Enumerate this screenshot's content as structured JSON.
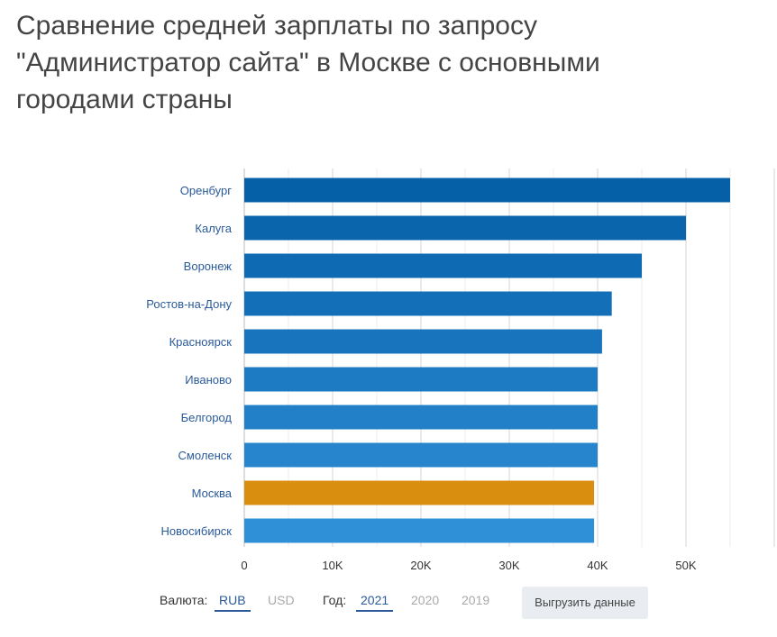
{
  "chart_data": {
    "type": "bar",
    "orientation": "horizontal",
    "title": "Сравнение средней зарплаты по запросу \"Администратор сайта\" в Москве с основными городами страны",
    "categories": [
      "Оренбург",
      "Калуга",
      "Воронеж",
      "Ростов-на-Дону",
      "Красноярск",
      "Иваново",
      "Белгород",
      "Смоленск",
      "Москва",
      "Новосибирск"
    ],
    "values": [
      55000,
      50000,
      45000,
      41600,
      40500,
      40000,
      40000,
      40000,
      39600,
      39600
    ],
    "highlight": "Москва",
    "xlim": [
      0,
      60000
    ],
    "xticks": [
      "0",
      "10K",
      "20K",
      "30K",
      "40K",
      "50K"
    ],
    "grid": true,
    "colors": {
      "top": "#0560a8",
      "bottom": "#2f90d8",
      "highlight": "#d98e10"
    }
  },
  "controls": {
    "currency_label": "Валюта:",
    "currencies": [
      "RUB",
      "USD"
    ],
    "year_label": "Год:",
    "years": [
      "2021",
      "2020",
      "2019"
    ],
    "export_label": "Выгрузить данные"
  }
}
